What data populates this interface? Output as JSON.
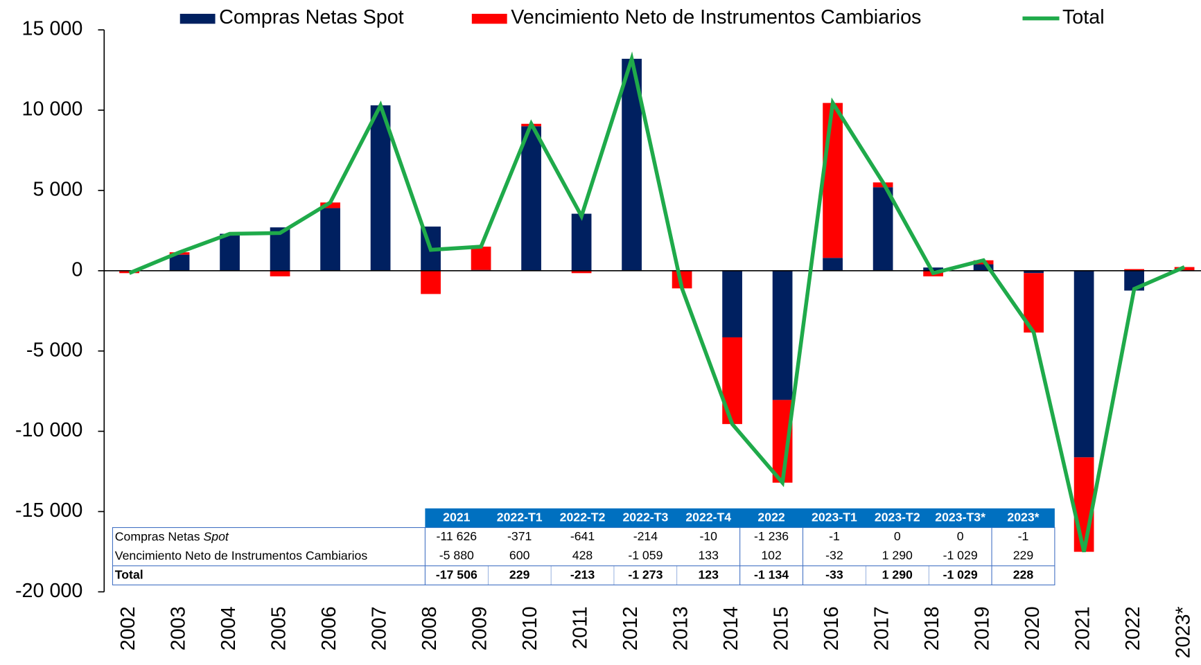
{
  "chart_data": {
    "type": "bar",
    "stacked": true,
    "categories": [
      "2002",
      "2003",
      "2004",
      "2005",
      "2006",
      "2007",
      "2008",
      "2009",
      "2010",
      "2011",
      "2012",
      "2013",
      "2014",
      "2015",
      "2016",
      "2017",
      "2018",
      "2019",
      "2020",
      "2021",
      "2022",
      "2023*"
    ],
    "series": [
      {
        "name": "Compras Netas Spot",
        "type": "bar",
        "color": "#002060",
        "values": [
          0,
          1000,
          2300,
          2700,
          3900,
          10300,
          2750,
          50,
          9000,
          3550,
          13200,
          0,
          -4150,
          -8050,
          800,
          5200,
          200,
          400,
          -150,
          -11626,
          -1236,
          -1
        ]
      },
      {
        "name": "Vencimiento Neto de Instrumentos Cambiarios",
        "type": "bar",
        "color": "#FF0000",
        "values": [
          -150,
          150,
          0,
          -350,
          350,
          0,
          -1450,
          1450,
          150,
          -150,
          0,
          -1100,
          -5400,
          -5150,
          9650,
          300,
          -350,
          250,
          -3700,
          -5880,
          102,
          229
        ]
      },
      {
        "name": "Total",
        "type": "line",
        "color": "#1FAA4A",
        "values": [
          -150,
          1150,
          2300,
          2350,
          4250,
          10300,
          1300,
          1500,
          9150,
          3400,
          13200,
          -1100,
          -9550,
          -13200,
          10450,
          5500,
          -150,
          650,
          -3850,
          -17506,
          -1134,
          228
        ]
      }
    ],
    "ylim": [
      -20000,
      15000
    ],
    "yticks": [
      {
        "value": -20000,
        "label": "-20 000"
      },
      {
        "value": -15000,
        "label": "-15 000"
      },
      {
        "value": -10000,
        "label": "-10 000"
      },
      {
        "value": -5000,
        "label": "-5 000"
      },
      0,
      {
        "value": 5000,
        "label": "5 000"
      },
      {
        "value": 10000,
        "label": "10 000"
      },
      {
        "value": 15000,
        "label": "15 000"
      }
    ],
    "legend": "top",
    "table": {
      "columns": [
        "2021",
        "2022-T1",
        "2022-T2",
        "2022-T3",
        "2022-T4",
        "2022",
        "2023-T1",
        "2023-T2",
        "2023-T3*",
        "2023*"
      ],
      "rows": [
        {
          "label": "Compras Netas",
          "label_italic": "Spot",
          "cells": [
            "-11 626",
            "-371",
            "-641",
            "-214",
            "-10",
            "-1 236",
            "-1",
            "0",
            "0",
            "-1"
          ]
        },
        {
          "label": "Vencimiento Neto de Instrumentos Cambiarios",
          "cells": [
            "-5 880",
            "600",
            "428",
            "-1 059",
            "133",
            "102",
            "-32",
            "1 290",
            "-1 029",
            "229"
          ]
        },
        {
          "label": "Total",
          "cells": [
            "-17 506",
            "229",
            "-213",
            "-1 273",
            "123",
            "-1 134",
            "-33",
            "1 290",
            "-1 029",
            "228"
          ]
        }
      ]
    }
  }
}
